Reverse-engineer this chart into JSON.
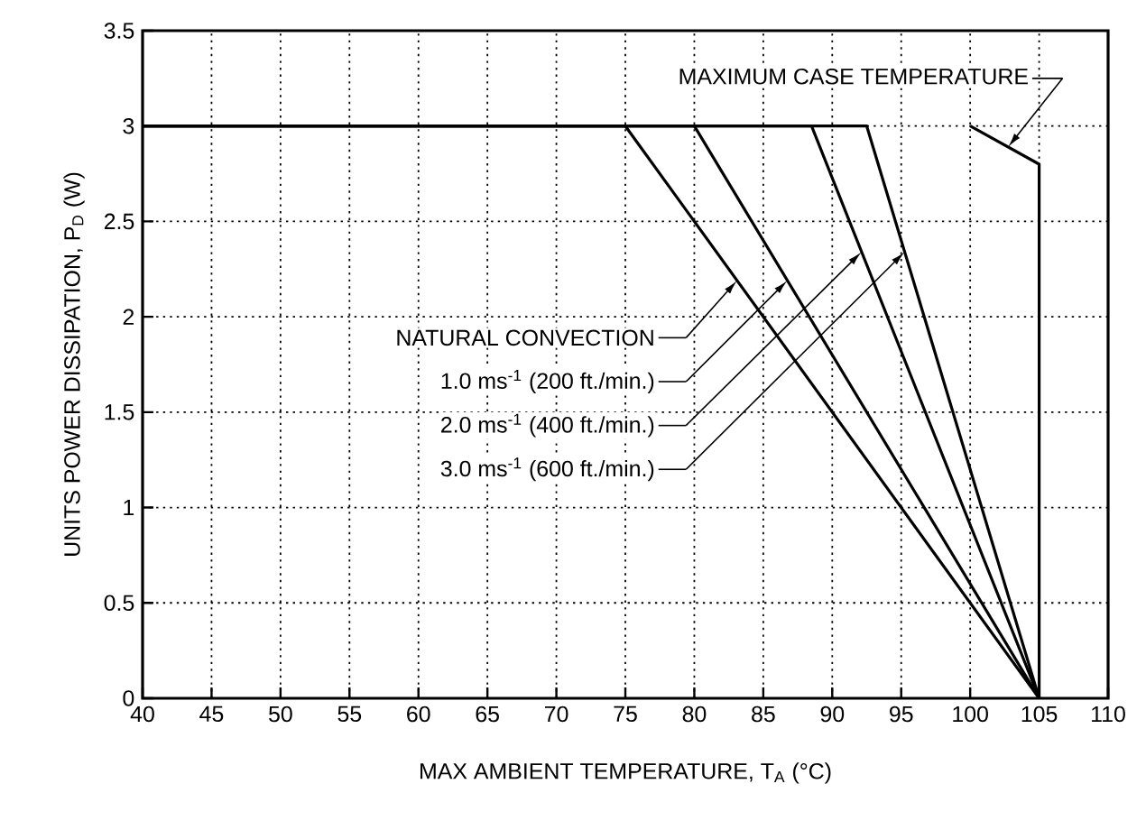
{
  "chart_data": {
    "type": "line",
    "xlabel": "MAX AMBIENT TEMPERATURE, T$_{A}$ (°C)",
    "ylabel": "UNITS POWER DISSIPATION, P$_{D}$ (W)",
    "series": [
      {
        "name": "NATURAL CONVECTION",
        "color": "#000000",
        "x": [
          40,
          75,
          105
        ],
        "values": [
          3,
          3,
          0
        ]
      },
      {
        "name": "1.0 ms$^{-1}$ (200 ft./min.)",
        "color": "#000000",
        "x": [
          40,
          80,
          105
        ],
        "values": [
          3,
          3,
          0
        ]
      },
      {
        "name": "2.0 ms$^{-1}$ (400 ft./min.)",
        "color": "#000000",
        "x": [
          40,
          88.5,
          105
        ],
        "values": [
          3,
          3,
          0
        ]
      },
      {
        "name": "3.0 ms$^{-1}$ (600 ft./min.)",
        "color": "#000000",
        "x": [
          40,
          92.5,
          105
        ],
        "values": [
          3,
          3,
          0
        ]
      },
      {
        "name": "MAXIMUM CASE TEMPERATURE",
        "color": "#000000",
        "x": [
          100,
          105,
          105
        ],
        "values": [
          3,
          2.8,
          0
        ]
      }
    ],
    "xlim": [
      40,
      110
    ],
    "ylim": [
      0,
      3.5
    ],
    "xticks": [
      40,
      45,
      50,
      55,
      60,
      65,
      70,
      75,
      80,
      85,
      90,
      95,
      100,
      105,
      110
    ],
    "yticks": [
      0,
      0.5,
      1,
      1.5,
      2,
      2.5,
      3,
      3.5
    ],
    "grid": true,
    "legend": "top right",
    "marker": "none",
    "line_style": "solid"
  }
}
